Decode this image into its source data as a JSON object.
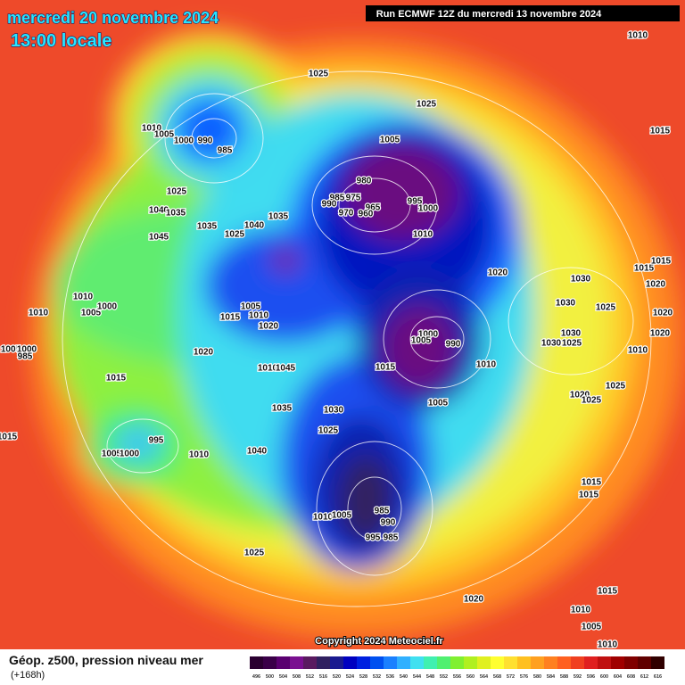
{
  "title_date": "mercredi 20 novembre 2024",
  "title_time": "13:00 locale",
  "run_info": "Run ECMWF 12Z du mercredi 13 novembre 2024",
  "copyright": "Copyright 2024 Meteociel.fr",
  "legend": {
    "title": "Géop. z500, pression niveau mer",
    "subtitle": "(+168h)",
    "values": [
      496,
      500,
      504,
      508,
      512,
      516,
      520,
      524,
      528,
      532,
      536,
      540,
      544,
      548,
      552,
      556,
      560,
      564,
      568,
      572,
      576,
      580,
      584,
      588,
      592,
      596,
      600,
      604,
      608,
      612,
      616
    ],
    "colors": [
      "#2a0030",
      "#3a0048",
      "#5a0070",
      "#7a1090",
      "#5a1a60",
      "#302060",
      "#1a1a90",
      "#0000c0",
      "#0020e0",
      "#0050f0",
      "#1a80ff",
      "#30b0ff",
      "#40e0f0",
      "#40f0b0",
      "#50f070",
      "#80f030",
      "#b0f020",
      "#e0f020",
      "#ffff30",
      "#ffe030",
      "#ffc020",
      "#ffa020",
      "#ff8020",
      "#ff6020",
      "#f04020",
      "#e02020",
      "#c01010",
      "#a00000",
      "#800000",
      "#600000",
      "#300000"
    ]
  },
  "pressure_labels": [
    1010,
    1025,
    1025,
    1015,
    1010,
    1005,
    1000,
    990,
    985,
    1005,
    980,
    985,
    975,
    990,
    970,
    965,
    960,
    995,
    1000,
    1010,
    1025,
    1040,
    1035,
    1045,
    1035,
    1025,
    1040,
    1035,
    1020,
    1030,
    1015,
    1015,
    1020,
    1030,
    1025,
    1020,
    1030,
    1030,
    1025,
    1020,
    1010,
    1010,
    1005,
    1000,
    1010,
    1005,
    1015,
    1010,
    1020,
    1000,
    990,
    1005,
    1015,
    1010,
    1020,
    1005,
    1000,
    985,
    1015,
    1010,
    1045,
    1005,
    1020,
    1025,
    1025,
    1035,
    1030,
    1025,
    1015,
    995,
    1005,
    1000,
    1010,
    1040,
    1015,
    1015,
    985,
    1010,
    1005,
    990,
    995,
    985,
    1025,
    1020,
    1015,
    1010,
    1005,
    1010
  ]
}
